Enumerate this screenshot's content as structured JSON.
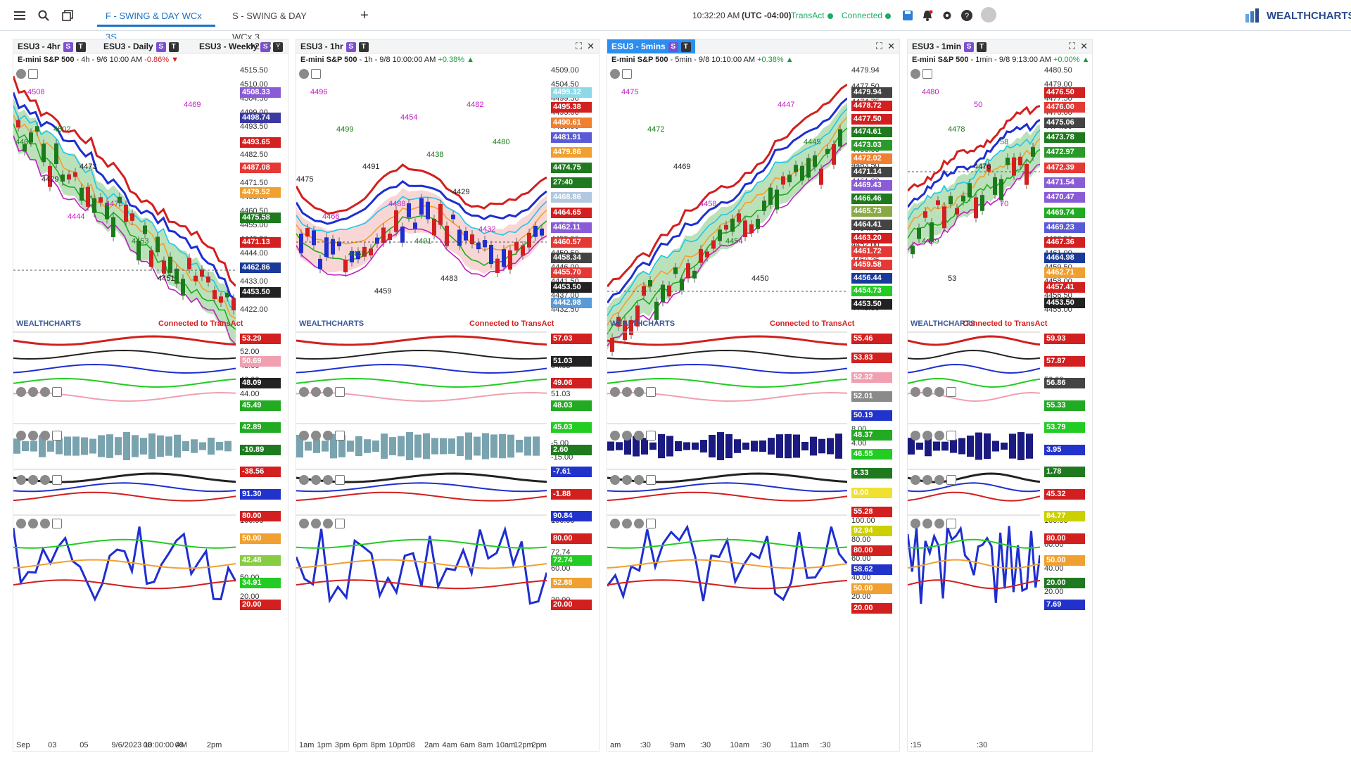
{
  "topbar": {
    "tabs": [
      "F - SWING & DAY WCx 3S...",
      "S - SWING & DAY WCx 3..."
    ],
    "time": "10:32:20 AM",
    "tz": "(UTC -04:00)",
    "broker": "TransAct",
    "status": "Connected",
    "logo": "WEALTHCHARTS"
  },
  "connected_text": "Connected to TransAct",
  "panels": [
    {
      "tabs": [
        "ESU3 - 4hr",
        "ESU3 - Daily",
        "ESU3 - Weekly"
      ],
      "selected": 0,
      "sym": "E-mini S&P 500",
      "info": " - 4h - 9/6 10:00 AM ",
      "chg": "-0.86%",
      "dir": "down",
      "count": "2",
      "axis": [
        "4515.50",
        "4510.00",
        "4504.50",
        "4499.00",
        "4493.50",
        "4488.00",
        "4482.50",
        "4477.00",
        "4471.50",
        "4466.00",
        "4460.50",
        "4455.00",
        "4449.50",
        "4444.00",
        "4438.50",
        "4433.00",
        "4427.50",
        "4422.00"
      ],
      "labels": [
        [
          "4508.33",
          "#8a5bd6"
        ],
        [
          "4498.74",
          "#3a3aa0"
        ],
        [
          "4493.65",
          "#d21f1f"
        ],
        [
          "4487.08",
          "#e53935"
        ],
        [
          "4479.52",
          "#f0a030"
        ],
        [
          "4475.58",
          "#1f7a1f"
        ],
        [
          "4471.13",
          "#d21f1f"
        ],
        [
          "4462.86",
          "#1a3a9a"
        ],
        [
          "4453.50",
          "#222"
        ]
      ],
      "lower_axis": [
        [
          "54.00",
          "52.00",
          "48.00",
          "46.00",
          "44.00",
          "40.00"
        ],
        [
          "20.00",
          "-10.89"
        ],
        [
          "50.00",
          "0.00"
        ],
        [
          "100.00",
          "80.00",
          "60.00",
          "50.00",
          "20.00"
        ]
      ],
      "lower_labels": [
        [
          "53.29",
          "#d21f1f"
        ],
        [
          "50.69",
          "#f0a0b0"
        ],
        [
          "48.09",
          "#222"
        ],
        [
          "45.49",
          "#22aa22"
        ],
        [
          "42.89",
          "#22aa22"
        ],
        [
          "-10.89",
          "#1f7a1f"
        ],
        [
          "-38.56",
          "#d21f1f"
        ],
        [
          "91.30",
          "#2233cc"
        ],
        [
          "80.00",
          "#d21f1f"
        ],
        [
          "50.00",
          "#f0a030"
        ],
        [
          "42.48",
          "#88cc44"
        ],
        [
          "34.91",
          "#22cc22"
        ],
        [
          "20.00",
          "#d21f1f"
        ]
      ],
      "xticks": [
        "Sep",
        "03",
        "05",
        "9/6/2023 10:00:00 AM",
        "08",
        "09",
        "2pm"
      ],
      "ann": [
        "4508",
        "4502",
        "4473",
        "4475",
        "4453",
        "4451",
        "4469",
        "4431",
        "4429",
        "4444"
      ]
    },
    {
      "tabs": [
        "ESU3 - 1hr"
      ],
      "selected": 0,
      "sym": "E-mini S&P 500",
      "info": " - 1h - 9/8 10:00:00 AM ",
      "chg": "+0.38%",
      "dir": "up",
      "axis": [
        "4509.00",
        "4504.50",
        "4499.50",
        "4495.00",
        "4490.50",
        "4486.50",
        "4482.00",
        "4477.50",
        "4473.00",
        "4468.50",
        "4464.00",
        "4459.50",
        "4455.00",
        "4450.50",
        "4446.00",
        "4441.50",
        "4437.00",
        "4432.50"
      ],
      "labels": [
        [
          "4499.32",
          "#8fd8e8"
        ],
        [
          "4495.38",
          "#d21f1f"
        ],
        [
          "4490.61",
          "#f08030"
        ],
        [
          "4481.91",
          "#5a5ad6"
        ],
        [
          "4479.86",
          "#f0a030"
        ],
        [
          "4474.75",
          "#1f7a1f"
        ],
        [
          "27:40",
          "#1f7a1f"
        ],
        [
          "4468.86",
          "#b0c8e0"
        ],
        [
          "4464.65",
          "#d21f1f"
        ],
        [
          "4462.11",
          "#8a5bd6"
        ],
        [
          "4460.57",
          "#e53935"
        ],
        [
          "4458.34",
          "#444"
        ],
        [
          "4455.70",
          "#e53935"
        ],
        [
          "4453.50",
          "#222"
        ],
        [
          "4442.98",
          "#5a9ad6"
        ]
      ],
      "lower_axis": [
        [
          "55.00",
          "54.03",
          "51.03"
        ],
        [
          "5.00",
          "-5.00",
          "-15.00"
        ],
        [
          "50.00",
          "0.00"
        ],
        [
          "100.00",
          "80.00",
          "72.74",
          "60.00",
          "40.00",
          "20.00"
        ]
      ],
      "lower_labels": [
        [
          "57.03",
          "#d21f1f"
        ],
        [
          "51.03",
          "#222"
        ],
        [
          "49.06",
          "#d21f1f"
        ],
        [
          "48.03",
          "#22aa22"
        ],
        [
          "45.03",
          "#22cc22"
        ],
        [
          "2.60",
          "#1f7a1f"
        ],
        [
          "-7.61",
          "#2233cc"
        ],
        [
          "-1.88",
          "#d21f1f"
        ],
        [
          "90.84",
          "#2233cc"
        ],
        [
          "80.00",
          "#d21f1f"
        ],
        [
          "72.74",
          "#22cc22"
        ],
        [
          "52.88",
          "#f0a030"
        ],
        [
          "20.00",
          "#d21f1f"
        ]
      ],
      "xticks": [
        "1am",
        "1pm",
        "3pm",
        "6pm",
        "8pm",
        "10pm",
        "08",
        "2am",
        "4am",
        "6am",
        "8am",
        "10am",
        "12pm",
        "2pm"
      ],
      "ann": [
        "4496",
        "4499",
        "4491",
        "4488",
        "4491",
        "4483",
        "4482",
        "4480",
        "4475",
        "4466",
        "4458",
        "4459",
        "4454",
        "4438",
        "4429",
        "4432"
      ]
    },
    {
      "tabs": [
        "ESU3 - 5mins"
      ],
      "selected": 0,
      "sym": "E-mini S&P 500",
      "info": " - 5min - 9/8 10:10:00 AM ",
      "chg": "+0.38%",
      "dir": "up",
      "axis": [
        "4479.94",
        "4477.50",
        "4474.75",
        "4472.50",
        "4469.75",
        "4466.00",
        "4463.50",
        "4461.00",
        "4458.25",
        "4457.25",
        "4454.75",
        "4452.00",
        "4450.25",
        "4448.50",
        "4446.75",
        "4445.00"
      ],
      "labels": [
        [
          "4479.94",
          "#444"
        ],
        [
          "4478.72",
          "#d21f1f"
        ],
        [
          "4477.50",
          "#d21f1f"
        ],
        [
          "4474.61",
          "#1f7a1f"
        ],
        [
          "4473.03",
          "#2a9a2a"
        ],
        [
          "4472.02",
          "#f08030"
        ],
        [
          "4471.14",
          "#444"
        ],
        [
          "4469.43",
          "#8a5bd6"
        ],
        [
          "4466.46",
          "#1f7a1f"
        ],
        [
          "4465.73",
          "#88aa44"
        ],
        [
          "4464.41",
          "#444"
        ],
        [
          "4463.20",
          "#d21f1f"
        ],
        [
          "4461.72",
          "#e53935"
        ],
        [
          "4459.58",
          "#e53935"
        ],
        [
          "4456.44",
          "#1a3a9a"
        ],
        [
          "4454.73",
          "#22cc22"
        ],
        [
          "4453.50",
          "#222"
        ]
      ],
      "lower_axis": [
        [
          "56.00",
          "52.00"
        ],
        [
          "8.00",
          "4.00",
          "2.00"
        ],
        [
          "0.00"
        ],
        [
          "100.00",
          "80.00",
          "60.00",
          "40.00",
          "20.00"
        ]
      ],
      "lower_labels": [
        [
          "55.46",
          "#d21f1f"
        ],
        [
          "53.83",
          "#d21f1f"
        ],
        [
          "52.32",
          "#f0a0b0"
        ],
        [
          "52.01",
          "#8a8a8a"
        ],
        [
          "50.19",
          "#2233cc"
        ],
        [
          "48.37",
          "#22aa22"
        ],
        [
          "46.55",
          "#22cc22"
        ],
        [
          "6.33",
          "#1f7a1f"
        ],
        [
          "0.00",
          "#f0e030"
        ],
        [
          "55.28",
          "#d21f1f"
        ],
        [
          "92.94",
          "#ccd000"
        ],
        [
          "80.00",
          "#d21f1f"
        ],
        [
          "58.62",
          "#2233cc"
        ],
        [
          "50.00",
          "#f0a030"
        ],
        [
          "20.00",
          "#d21f1f"
        ]
      ],
      "xticks": [
        "am",
        ":30",
        "9am",
        ":30",
        "10am",
        ":30",
        "11am",
        ":30"
      ],
      "ann": [
        "4475",
        "4472",
        "4469",
        "4458",
        "4454",
        "4450",
        "4447",
        "4445"
      ]
    },
    {
      "tabs": [
        "ESU3 - 1min"
      ],
      "selected": 0,
      "sym": "E-mini S&P 500",
      "info": " - 1min - 9/8 9:13:00 AM ",
      "chg": "+0.00%",
      "dir": "up",
      "axis": [
        "4480.50",
        "4479.00",
        "4477.50",
        "4476.00",
        "4474.50",
        "4473.00",
        "4471.50",
        "4470.00",
        "4468.50",
        "4467.00",
        "4465.50",
        "4464.00",
        "4462.50",
        "4461.00",
        "4459.50",
        "4458.00",
        "4456.50",
        "4455.00"
      ],
      "labels": [
        [
          "4476.50",
          "#d21f1f"
        ],
        [
          "4476.00",
          "#e53935"
        ],
        [
          "4475.06",
          "#444"
        ],
        [
          "4473.78",
          "#1f7a1f"
        ],
        [
          "4472.97",
          "#2a9a2a"
        ],
        [
          "4472.39",
          "#e53935"
        ],
        [
          "4471.54",
          "#8a5bd6"
        ],
        [
          "4470.47",
          "#8a5bd6"
        ],
        [
          "4469.74",
          "#22aa22"
        ],
        [
          "4469.23",
          "#5a5ad6"
        ],
        [
          "4467.36",
          "#d21f1f"
        ],
        [
          "4464.98",
          "#1a3a9a"
        ],
        [
          "4462.71",
          "#f0a030"
        ],
        [
          "4457.41",
          "#d21f1f"
        ],
        [
          "4453.50",
          "#222"
        ]
      ],
      "lower_axis": [
        [
          "58.39",
          "56.00"
        ],
        [
          "3.00",
          "0.00"
        ],
        [
          "0.00"
        ],
        [
          "100.00",
          "60.00",
          "40.00",
          "20.00"
        ]
      ],
      "lower_labels": [
        [
          "59.93",
          "#d21f1f"
        ],
        [
          "57.87",
          "#d21f1f"
        ],
        [
          "56.86",
          "#444"
        ],
        [
          "55.33",
          "#22aa22"
        ],
        [
          "53.79",
          "#22cc22"
        ],
        [
          "3.95",
          "#2233cc"
        ],
        [
          "1.78",
          "#1f7a1f"
        ],
        [
          "45.32",
          "#d21f1f"
        ],
        [
          "84.77",
          "#ccd000"
        ],
        [
          "80.00",
          "#d21f1f"
        ],
        [
          "50.00",
          "#f0a030"
        ],
        [
          "20.00",
          "#1f7a1f"
        ],
        [
          "7.69",
          "#2233cc"
        ]
      ],
      "xticks": [
        ":15",
        ":30"
      ],
      "ann": [
        "4480",
        "4478",
        "4476",
        "70",
        "4469",
        "53",
        "50",
        "58"
      ]
    }
  ]
}
